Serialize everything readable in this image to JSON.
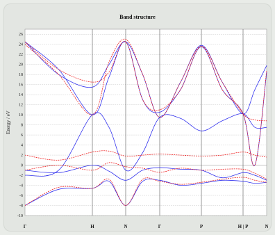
{
  "chart_data": {
    "type": "line",
    "title": "Band structure",
    "xlabel": "",
    "ylabel": "Energy / eV",
    "ylim": [
      -10,
      27
    ],
    "yticks": [
      -10,
      -8,
      -6,
      -4,
      -2,
      0,
      2,
      4,
      6,
      8,
      10,
      12,
      14,
      16,
      18,
      20,
      22,
      24,
      26
    ],
    "xticks": [
      "Γ",
      "H",
      "N",
      "Γ",
      "P",
      "H | P",
      "N"
    ],
    "grid": true,
    "colors": {
      "series_a": "#3333ee",
      "series_b": "#ee2222"
    },
    "series": [
      {
        "style": "blue-solid",
        "x": [
          0,
          0.5,
          1,
          1.5,
          2,
          2.5,
          3,
          3.5,
          4,
          4.5,
          5,
          5.5,
          6
        ],
        "values": [
          -8,
          -4.8,
          -4.6,
          -3.2,
          -8,
          -3.2,
          -3,
          -4,
          -3.6,
          -3,
          -3.2,
          -3.6,
          -3.4
        ]
      },
      {
        "style": "blue-solid",
        "x": [
          0,
          0.5,
          1,
          1.5,
          2,
          2.5,
          3,
          3.5,
          4,
          4.5,
          5,
          5.5,
          6
        ],
        "values": [
          -1,
          -1.5,
          0,
          -1.2,
          -3,
          -1,
          -0.5,
          -0.8,
          -1,
          -2.5,
          -1.5,
          -2,
          -3
        ]
      },
      {
        "style": "blue-solid",
        "x": [
          0,
          0.5,
          1,
          1.5,
          2,
          2.5,
          3,
          3.5,
          4,
          4.5,
          5,
          5.5,
          6
        ],
        "values": [
          -2,
          -1,
          10,
          7.5,
          -1,
          2.5,
          9.5,
          9.3,
          6.8,
          8.8,
          10.2,
          7.5,
          7.5
        ]
      },
      {
        "style": "blue-solid",
        "x": [
          0,
          0.5,
          1,
          1.5,
          2,
          2.5,
          3,
          3.5,
          4,
          4.5,
          5,
          5.5,
          6
        ],
        "values": [
          24.5,
          19,
          10,
          17.5,
          24.5,
          13,
          10.5,
          15,
          23.5,
          15,
          10.2,
          0,
          18.5
        ]
      },
      {
        "style": "blue-solid",
        "x": [
          0,
          0.5,
          1,
          1.5,
          2,
          2.5,
          3,
          3.5,
          4,
          4.5,
          5,
          5.5,
          6
        ],
        "values": [
          24.5,
          18,
          15.5,
          20,
          24.5,
          18,
          9.5,
          16.5,
          23.8,
          16.5,
          10.2,
          15,
          19.8
        ]
      },
      {
        "style": "red-dashed",
        "x": [
          0,
          0.5,
          1,
          1.5,
          2,
          2.5,
          3,
          3.5,
          4,
          4.5,
          5,
          5.5,
          6
        ],
        "values": [
          -8,
          -4.4,
          -4.6,
          -2.8,
          -8,
          -2.8,
          -3.2,
          -3.8,
          -3.4,
          -2.8,
          -2.4,
          -3,
          -3.4
        ]
      },
      {
        "style": "red-dashed",
        "x": [
          0,
          0.5,
          1,
          1.5,
          2,
          2.5,
          3,
          3.5,
          4,
          4.5,
          5,
          5.5,
          6
        ],
        "values": [
          2,
          1,
          2.6,
          2.8,
          1.8,
          2,
          2.2,
          2,
          1.8,
          2,
          2.6,
          2,
          1.6
        ]
      },
      {
        "style": "red-dashed",
        "x": [
          0,
          0.5,
          1,
          1.5,
          2,
          2.5,
          3,
          3.5,
          4,
          4.5,
          5,
          5.5,
          6
        ],
        "values": [
          -1,
          0,
          -1,
          0.5,
          -0.3,
          -0.6,
          -1.4,
          -0.6,
          -1,
          -0.8,
          -0.8,
          -1.6,
          -2.8
        ]
      },
      {
        "style": "red-dashed",
        "x": [
          0,
          0.5,
          1,
          1.5,
          2,
          2.5,
          3,
          3.5,
          4,
          4.5,
          5,
          5.5,
          6
        ],
        "values": [
          24.5,
          19,
          16.5,
          18.5,
          24.5,
          13,
          11,
          15,
          23.6,
          15,
          10.2,
          0,
          18.8
        ]
      },
      {
        "style": "red-dashed",
        "x": [
          0,
          0.5,
          1,
          1.5,
          2,
          2.5,
          3,
          3.5,
          4,
          4.5,
          5,
          5.5,
          6
        ],
        "values": [
          24,
          18,
          10,
          20.5,
          25,
          18,
          9.5,
          16.5,
          23.6,
          16.5,
          10.2,
          9,
          8.8
        ]
      }
    ]
  }
}
